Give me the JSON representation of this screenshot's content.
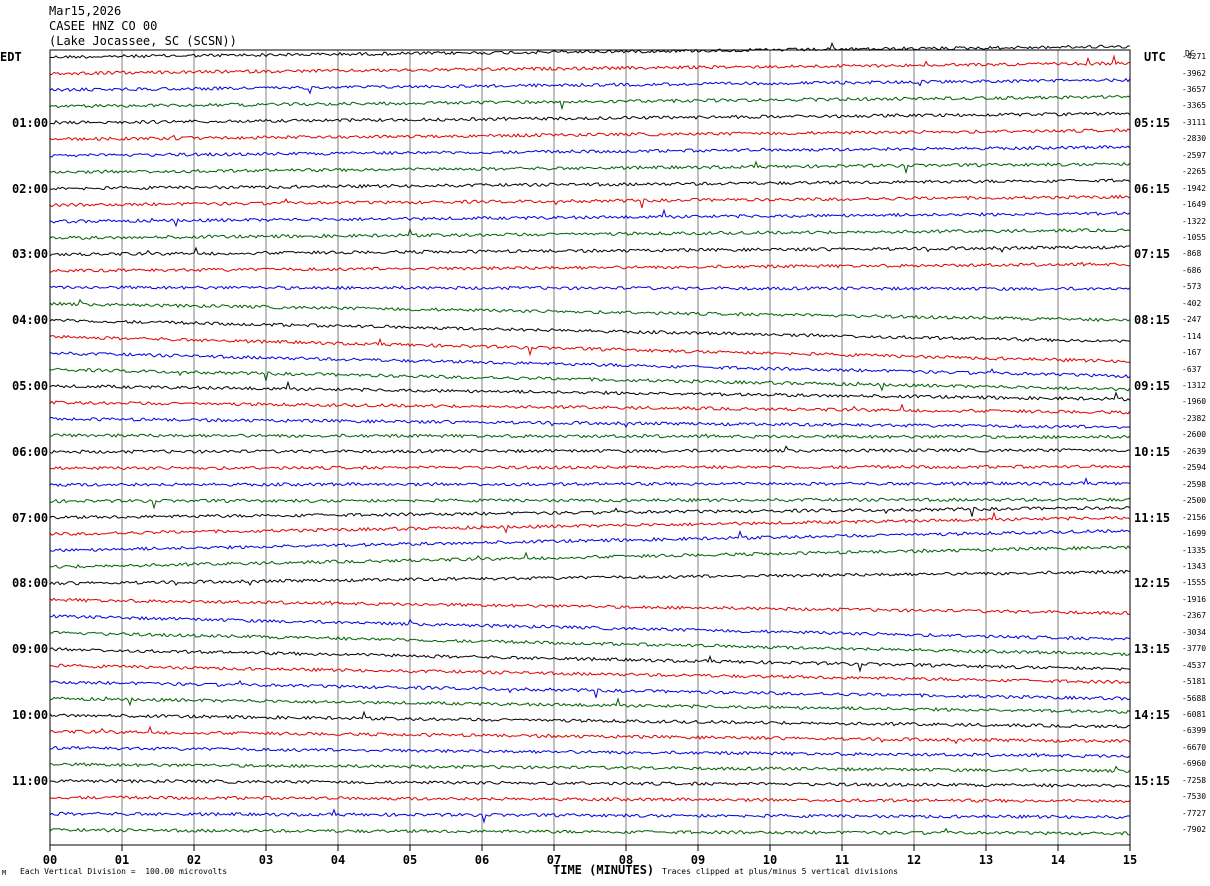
{
  "header": {
    "date": "Mar15,2026",
    "station": "CASEE HNZ CO 00",
    "location": "(Lake Jocassee, SC (SCSN))"
  },
  "left_timezone": "EDT",
  "right_timezone": "UTC",
  "dc_label": "DC",
  "footer": {
    "division_note": "Each Vertical Division =  100.00 microvolts",
    "clip_note": "Traces clipped at plus/minus 5 vertical divisions",
    "corner_mark": "M"
  },
  "colors": {
    "black": "#000000",
    "red": "#e00000",
    "blue": "#0000e0",
    "green": "#006000",
    "grid": "#808080"
  },
  "chart_data": {
    "type": "line",
    "title": "",
    "xlabel": "TIME (MINUTES)",
    "xlim": [
      0,
      15
    ],
    "x_ticks": [
      "00",
      "01",
      "02",
      "03",
      "04",
      "05",
      "06",
      "07",
      "08",
      "09",
      "10",
      "11",
      "12",
      "13",
      "14",
      "15"
    ],
    "rows_per_hour": 4,
    "row_minutes": 15,
    "vertical_division_microvolts": 100.0,
    "clip_divisions": 5,
    "color_cycle": [
      "black",
      "red",
      "blue",
      "green"
    ],
    "left_hour_labels": [
      "01:00",
      "02:00",
      "03:00",
      "04:00",
      "05:00",
      "06:00",
      "07:00",
      "08:00",
      "09:00",
      "10:00",
      "11:00"
    ],
    "right_hour_labels": [
      "05:15",
      "06:15",
      "07:15",
      "08:15",
      "09:15",
      "10:15",
      "11:15",
      "12:15",
      "13:15",
      "14:15",
      "15:15"
    ],
    "dc_offsets": [
      -4271,
      -3962,
      -3657,
      -3365,
      -3111,
      -2830,
      -2597,
      -2265,
      -1942,
      -1649,
      -1322,
      -1055,
      -868,
      -686,
      -573,
      -402,
      -247,
      -114,
      -167,
      -637,
      -1312,
      -1960,
      -2382,
      -2600,
      -2639,
      -2594,
      -2598,
      -2500,
      -2156,
      -1699,
      -1335,
      -1343,
      -1555,
      -1916,
      -2367,
      -3034,
      -3770,
      -4537,
      -5181,
      -5688,
      -6081,
      -6399,
      -6670,
      -6960,
      -7258,
      -7530,
      -7727,
      -7902
    ],
    "trace_drift_divisions": [
      -3.2,
      -3.1,
      -3.0,
      -2.9,
      -2.8,
      -2.7,
      -2.6,
      -2.5,
      -2.5,
      -2.5,
      -2.5,
      -2.4,
      -2.2,
      -2.0,
      0.5,
      5.0,
      6.5,
      7.5,
      7.0,
      6.0,
      4.0,
      3.0,
      2.5,
      0.5,
      -0.5,
      -0.5,
      -0.4,
      -0.5,
      -3.0,
      -5.0,
      -6.0,
      -6.0,
      -3.5,
      4.0,
      7.0,
      6.5,
      6.0,
      5.0,
      5.0,
      4.0,
      3.5,
      3.0,
      2.5,
      2.0,
      1.5,
      1.2,
      1.0,
      1.0
    ]
  }
}
